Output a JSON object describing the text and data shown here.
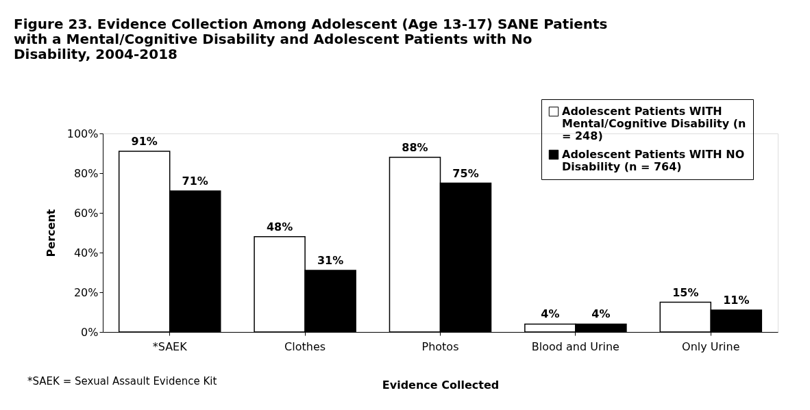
{
  "chart_data": {
    "type": "bar",
    "title": "Figure 23. Evidence Collection Among Adolescent (Age 13-17) SANE Patients with a Mental/Cognitive Disability and Adolescent Patients with No Disability, 2004-2018",
    "xlabel": "Evidence Collected",
    "ylabel": "Percent",
    "categories": [
      "*SAEK",
      "Clothes",
      "Photos",
      "Blood and Urine",
      "Only Urine"
    ],
    "series": [
      {
        "name": "Adolescent Patients WITH Mental/Cognitive Disability (n = 248)",
        "color": "#ffffff",
        "values": [
          91,
          48,
          88,
          4,
          15
        ],
        "value_labels": [
          "91%",
          "48%",
          "88%",
          "4%",
          "15%"
        ]
      },
      {
        "name": "Adolescent Patients WITH NO Disability  (n = 764)",
        "color": "#000000",
        "values": [
          71,
          31,
          75,
          4,
          11
        ],
        "value_labels": [
          "71%",
          "31%",
          "75%",
          "4%",
          "11%"
        ]
      }
    ],
    "ylim": [
      0,
      100
    ],
    "yticks": [
      {
        "value": 0,
        "label": "0%"
      },
      {
        "value": 20,
        "label": "20%"
      },
      {
        "value": 40,
        "label": "40%"
      },
      {
        "value": 60,
        "label": "60%"
      },
      {
        "value": 80,
        "label": "80%"
      },
      {
        "value": 100,
        "label": "100%"
      }
    ],
    "grid": false,
    "legend": "top right",
    "annotations": [
      "*SAEK = Sexual Assault Evidence Kit"
    ]
  }
}
